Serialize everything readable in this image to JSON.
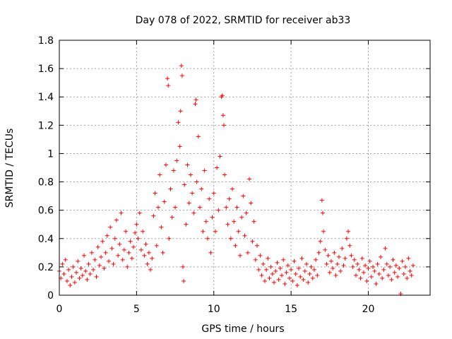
{
  "chart_data": {
    "type": "scatter",
    "title": "Day 078 of 2022, SRMTID for receiver ab33",
    "xlabel": "GPS time / hours",
    "ylabel": "SRMTID / TECUs",
    "xlim": [
      0,
      24
    ],
    "ylim": [
      0,
      1.8
    ],
    "xticks": [
      0,
      5,
      10,
      15,
      20
    ],
    "xtick_labels": [
      "0",
      "5",
      "10",
      "15",
      "20"
    ],
    "yticks": [
      0,
      0.2,
      0.4,
      0.6,
      0.8,
      1,
      1.2,
      1.4,
      1.6,
      1.8
    ],
    "ytick_labels": [
      "0",
      "0.2",
      "0.4",
      "0.6",
      "0.8",
      "1",
      "1.2",
      "1.4",
      "1.6",
      "1.8"
    ],
    "grid": true,
    "marker": "+",
    "marker_color": "#ff0000",
    "series": [
      {
        "name": "SRMTID",
        "points": [
          [
            0.0,
            0.17
          ],
          [
            0.1,
            0.12
          ],
          [
            0.2,
            0.22
          ],
          [
            0.3,
            0.15
          ],
          [
            0.4,
            0.25
          ],
          [
            0.5,
            0.1
          ],
          [
            0.6,
            0.18
          ],
          [
            0.7,
            0.07
          ],
          [
            0.8,
            0.13
          ],
          [
            0.9,
            0.2
          ],
          [
            1.0,
            0.09
          ],
          [
            1.1,
            0.16
          ],
          [
            1.2,
            0.24
          ],
          [
            1.3,
            0.12
          ],
          [
            1.4,
            0.19
          ],
          [
            1.5,
            0.14
          ],
          [
            1.6,
            0.28
          ],
          [
            1.7,
            0.17
          ],
          [
            1.8,
            0.11
          ],
          [
            1.9,
            0.22
          ],
          [
            2.0,
            0.15
          ],
          [
            2.1,
            0.3
          ],
          [
            2.2,
            0.18
          ],
          [
            2.3,
            0.25
          ],
          [
            2.4,
            0.13
          ],
          [
            2.5,
            0.34
          ],
          [
            2.6,
            0.21
          ],
          [
            2.7,
            0.27
          ],
          [
            2.8,
            0.38
          ],
          [
            2.9,
            0.19
          ],
          [
            3.0,
            0.3
          ],
          [
            3.1,
            0.42
          ],
          [
            3.2,
            0.24
          ],
          [
            3.3,
            0.48
          ],
          [
            3.4,
            0.33
          ],
          [
            3.5,
            0.22
          ],
          [
            3.6,
            0.4
          ],
          [
            3.7,
            0.53
          ],
          [
            3.8,
            0.28
          ],
          [
            3.9,
            0.36
          ],
          [
            4.0,
            0.58
          ],
          [
            4.1,
            0.25
          ],
          [
            4.2,
            0.32
          ],
          [
            4.3,
            0.45
          ],
          [
            4.4,
            0.2
          ],
          [
            4.5,
            0.3
          ],
          [
            4.6,
            0.38
          ],
          [
            4.7,
            0.26
          ],
          [
            4.8,
            0.34
          ],
          [
            4.9,
            0.44
          ],
          [
            5.0,
            0.5
          ],
          [
            5.1,
            0.4
          ],
          [
            5.2,
            0.58
          ],
          [
            5.3,
            0.32
          ],
          [
            5.4,
            0.45
          ],
          [
            5.5,
            0.28
          ],
          [
            5.6,
            0.36
          ],
          [
            5.7,
            0.22
          ],
          [
            5.8,
            0.3
          ],
          [
            5.9,
            0.18
          ],
          [
            6.0,
            0.26
          ],
          [
            6.1,
            0.56
          ],
          [
            6.2,
            0.72
          ],
          [
            6.3,
            0.35
          ],
          [
            6.4,
            0.62
          ],
          [
            6.5,
            0.85
          ],
          [
            6.6,
            0.48
          ],
          [
            6.7,
            0.3
          ],
          [
            6.8,
            0.66
          ],
          [
            6.9,
            0.92
          ],
          [
            7.0,
            1.53
          ],
          [
            7.05,
            1.48
          ],
          [
            7.1,
            0.4
          ],
          [
            7.2,
            0.75
          ],
          [
            7.3,
            0.55
          ],
          [
            7.4,
            0.88
          ],
          [
            7.5,
            0.62
          ],
          [
            7.6,
            0.95
          ],
          [
            7.7,
            1.22
          ],
          [
            7.8,
            1.05
          ],
          [
            7.85,
            1.3
          ],
          [
            7.9,
            1.62
          ],
          [
            7.95,
            1.55
          ],
          [
            8.0,
            0.2
          ],
          [
            8.05,
            0.1
          ],
          [
            8.1,
            0.78
          ],
          [
            8.2,
            0.5
          ],
          [
            8.3,
            0.92
          ],
          [
            8.4,
            0.65
          ],
          [
            8.5,
            0.85
          ],
          [
            8.6,
            0.72
          ],
          [
            8.7,
            0.58
          ],
          [
            8.8,
            1.35
          ],
          [
            8.85,
            1.38
          ],
          [
            8.9,
            0.8
          ],
          [
            9.0,
            1.12
          ],
          [
            9.1,
            0.62
          ],
          [
            9.2,
            0.75
          ],
          [
            9.3,
            0.45
          ],
          [
            9.4,
            0.88
          ],
          [
            9.5,
            0.52
          ],
          [
            9.6,
            0.4
          ],
          [
            9.7,
            0.68
          ],
          [
            9.8,
            0.3
          ],
          [
            9.9,
            0.55
          ],
          [
            10.0,
            0.72
          ],
          [
            10.1,
            0.45
          ],
          [
            10.2,
            0.9
          ],
          [
            10.3,
            0.6
          ],
          [
            10.4,
            0.98
          ],
          [
            10.5,
            1.4
          ],
          [
            10.55,
            1.41
          ],
          [
            10.6,
            1.27
          ],
          [
            10.65,
            1.2
          ],
          [
            10.7,
            0.85
          ],
          [
            10.8,
            0.62
          ],
          [
            10.9,
            0.5
          ],
          [
            11.0,
            0.68
          ],
          [
            11.1,
            0.4
          ],
          [
            11.2,
            0.75
          ],
          [
            11.3,
            0.52
          ],
          [
            11.4,
            0.35
          ],
          [
            11.5,
            0.62
          ],
          [
            11.6,
            0.45
          ],
          [
            11.7,
            0.28
          ],
          [
            11.8,
            0.55
          ],
          [
            11.9,
            0.7
          ],
          [
            12.0,
            0.42
          ],
          [
            12.1,
            0.58
          ],
          [
            12.2,
            0.3
          ],
          [
            12.3,
            0.82
          ],
          [
            12.4,
            0.65
          ],
          [
            12.5,
            0.38
          ],
          [
            12.6,
            0.52
          ],
          [
            12.7,
            0.25
          ],
          [
            12.8,
            0.35
          ],
          [
            12.9,
            0.18
          ],
          [
            13.0,
            0.28
          ],
          [
            13.1,
            0.14
          ],
          [
            13.2,
            0.22
          ],
          [
            13.3,
            0.1
          ],
          [
            13.4,
            0.18
          ],
          [
            13.5,
            0.26
          ],
          [
            13.6,
            0.12
          ],
          [
            13.7,
            0.2
          ],
          [
            13.8,
            0.15
          ],
          [
            13.9,
            0.09
          ],
          [
            14.0,
            0.17
          ],
          [
            14.1,
            0.23
          ],
          [
            14.2,
            0.11
          ],
          [
            14.3,
            0.19
          ],
          [
            14.4,
            0.14
          ],
          [
            14.5,
            0.25
          ],
          [
            14.6,
            0.08
          ],
          [
            14.7,
            0.16
          ],
          [
            14.8,
            0.21
          ],
          [
            14.9,
            0.12
          ],
          [
            15.0,
            0.18
          ],
          [
            15.1,
            0.1
          ],
          [
            15.2,
            0.24
          ],
          [
            15.3,
            0.15
          ],
          [
            15.4,
            0.07
          ],
          [
            15.5,
            0.19
          ],
          [
            15.6,
            0.13
          ],
          [
            15.7,
            0.26
          ],
          [
            15.8,
            0.11
          ],
          [
            15.9,
            0.17
          ],
          [
            16.0,
            0.22
          ],
          [
            16.1,
            0.09
          ],
          [
            16.2,
            0.15
          ],
          [
            16.3,
            0.2
          ],
          [
            16.4,
            0.12
          ],
          [
            16.5,
            0.18
          ],
          [
            16.6,
            0.25
          ],
          [
            16.7,
            0.14
          ],
          [
            16.8,
            0.3
          ],
          [
            16.9,
            0.38
          ],
          [
            17.0,
            0.67
          ],
          [
            17.05,
            0.58
          ],
          [
            17.1,
            0.45
          ],
          [
            17.2,
            0.32
          ],
          [
            17.3,
            0.22
          ],
          [
            17.4,
            0.28
          ],
          [
            17.5,
            0.16
          ],
          [
            17.6,
            0.24
          ],
          [
            17.7,
            0.19
          ],
          [
            17.8,
            0.3
          ],
          [
            17.9,
            0.14
          ],
          [
            18.0,
            0.22
          ],
          [
            18.1,
            0.27
          ],
          [
            18.2,
            0.17
          ],
          [
            18.3,
            0.33
          ],
          [
            18.4,
            0.21
          ],
          [
            18.5,
            0.26
          ],
          [
            18.6,
            0.4
          ],
          [
            18.7,
            0.45
          ],
          [
            18.8,
            0.35
          ],
          [
            18.9,
            0.28
          ],
          [
            19.0,
            0.2
          ],
          [
            19.1,
            0.25
          ],
          [
            19.2,
            0.14
          ],
          [
            19.3,
            0.22
          ],
          [
            19.4,
            0.18
          ],
          [
            19.5,
            0.12
          ],
          [
            19.6,
            0.26
          ],
          [
            19.7,
            0.16
          ],
          [
            19.8,
            0.21
          ],
          [
            19.9,
            0.1
          ],
          [
            20.0,
            0.19
          ],
          [
            20.1,
            0.24
          ],
          [
            20.2,
            0.13
          ],
          [
            20.3,
            0.2
          ],
          [
            20.4,
            0.17
          ],
          [
            20.5,
            0.08
          ],
          [
            20.6,
            0.22
          ],
          [
            20.7,
            0.15
          ],
          [
            20.8,
            0.27
          ],
          [
            20.9,
            0.12
          ],
          [
            21.0,
            0.18
          ],
          [
            21.1,
            0.33
          ],
          [
            21.2,
            0.22
          ],
          [
            21.3,
            0.14
          ],
          [
            21.4,
            0.2
          ],
          [
            21.5,
            0.11
          ],
          [
            21.6,
            0.25
          ],
          [
            21.7,
            0.16
          ],
          [
            21.8,
            0.21
          ],
          [
            21.9,
            0.13
          ],
          [
            22.0,
            0.19
          ],
          [
            22.1,
            0.01
          ],
          [
            22.2,
            0.24
          ],
          [
            22.3,
            0.15
          ],
          [
            22.4,
            0.2
          ],
          [
            22.5,
            0.12
          ],
          [
            22.6,
            0.26
          ],
          [
            22.7,
            0.17
          ],
          [
            22.8,
            0.14
          ],
          [
            22.9,
            0.21
          ]
        ]
      }
    ]
  }
}
